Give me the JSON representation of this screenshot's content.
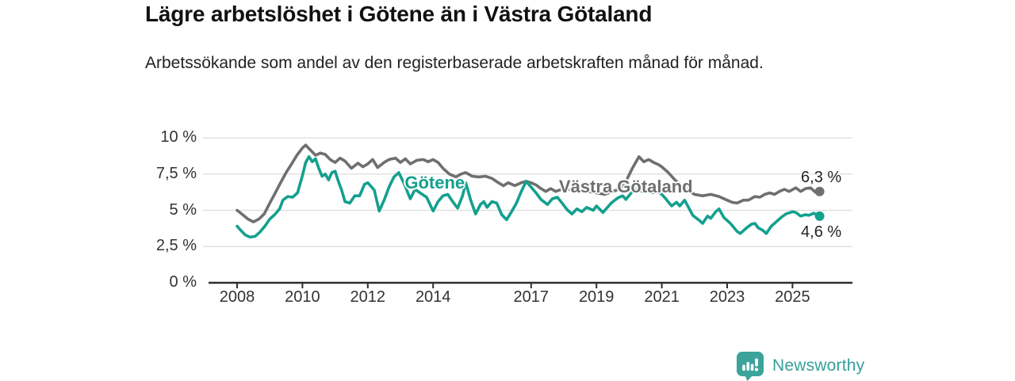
{
  "header": {
    "title": "Lägre arbetslöshet i Götene än i Västra Götaland",
    "subtitle": "Arbetssökande som andel av den registerbaserade arbetskraften månad för månad."
  },
  "chart_data": {
    "type": "line",
    "title": "Lägre arbetslöshet i Götene än i Västra Götaland",
    "xlabel": "",
    "ylabel": "",
    "grid": true,
    "legend_position": "inline-labels",
    "ylim": [
      0,
      10
    ],
    "x_range_years": [
      2007.1,
      2026.8
    ],
    "y_ticks": [
      {
        "label": "0 %",
        "value": 0
      },
      {
        "label": "2,5 %",
        "value": 2.5
      },
      {
        "label": "5 %",
        "value": 5
      },
      {
        "label": "7,5 %",
        "value": 7.5
      },
      {
        "label": "10 %",
        "value": 10
      }
    ],
    "x_ticks": [
      {
        "label": "2008",
        "year": 2008
      },
      {
        "label": "2010",
        "year": 2010
      },
      {
        "label": "2012",
        "year": 2012
      },
      {
        "label": "2014",
        "year": 2014
      },
      {
        "label": "2017",
        "year": 2017
      },
      {
        "label": "2019",
        "year": 2019
      },
      {
        "label": "2021",
        "year": 2021
      },
      {
        "label": "2023",
        "year": 2023
      },
      {
        "label": "2025",
        "year": 2025
      }
    ],
    "series": [
      {
        "name": "Västra Götaland",
        "color": "#6f6f6f",
        "label_color": "#6f6f6f",
        "inline_label": {
          "text": "Västra Götaland",
          "x_year": 2019.9,
          "y_value": 6.6
        },
        "end_label": "6,3 %",
        "end_value": 6.3,
        "value_label_position": "above",
        "points": [
          [
            2008.0,
            5.0
          ],
          [
            2008.17,
            4.7
          ],
          [
            2008.33,
            4.4
          ],
          [
            2008.5,
            4.2
          ],
          [
            2008.67,
            4.4
          ],
          [
            2008.83,
            4.75
          ],
          [
            2009.0,
            5.5
          ],
          [
            2009.17,
            6.2
          ],
          [
            2009.33,
            6.9
          ],
          [
            2009.5,
            7.6
          ],
          [
            2009.67,
            8.2
          ],
          [
            2009.83,
            8.8
          ],
          [
            2010.0,
            9.3
          ],
          [
            2010.1,
            9.5
          ],
          [
            2010.25,
            9.15
          ],
          [
            2010.4,
            8.8
          ],
          [
            2010.55,
            8.95
          ],
          [
            2010.7,
            8.85
          ],
          [
            2010.85,
            8.5
          ],
          [
            2011.0,
            8.3
          ],
          [
            2011.15,
            8.6
          ],
          [
            2011.3,
            8.4
          ],
          [
            2011.5,
            7.9
          ],
          [
            2011.7,
            8.25
          ],
          [
            2011.85,
            8.0
          ],
          [
            2012.0,
            8.2
          ],
          [
            2012.15,
            8.5
          ],
          [
            2012.3,
            7.95
          ],
          [
            2012.5,
            8.3
          ],
          [
            2012.65,
            8.5
          ],
          [
            2012.85,
            8.6
          ],
          [
            2013.0,
            8.3
          ],
          [
            2013.15,
            8.55
          ],
          [
            2013.3,
            8.2
          ],
          [
            2013.5,
            8.45
          ],
          [
            2013.7,
            8.5
          ],
          [
            2013.85,
            8.35
          ],
          [
            2014.0,
            8.5
          ],
          [
            2014.15,
            8.3
          ],
          [
            2014.3,
            7.9
          ],
          [
            2014.5,
            7.5
          ],
          [
            2014.7,
            7.3
          ],
          [
            2014.85,
            7.5
          ],
          [
            2015.0,
            7.6
          ],
          [
            2015.2,
            7.35
          ],
          [
            2015.4,
            7.3
          ],
          [
            2015.6,
            7.35
          ],
          [
            2015.8,
            7.2
          ],
          [
            2016.0,
            6.9
          ],
          [
            2016.15,
            6.7
          ],
          [
            2016.3,
            6.9
          ],
          [
            2016.5,
            6.7
          ],
          [
            2016.7,
            6.9
          ],
          [
            2016.85,
            7.0
          ],
          [
            2017.0,
            6.9
          ],
          [
            2017.15,
            6.75
          ],
          [
            2017.3,
            6.5
          ],
          [
            2017.45,
            6.3
          ],
          [
            2017.6,
            6.5
          ],
          [
            2017.75,
            6.3
          ],
          [
            2018.0,
            6.5
          ],
          [
            2018.25,
            6.4
          ],
          [
            2018.5,
            6.35
          ],
          [
            2018.75,
            6.3
          ],
          [
            2019.0,
            6.2
          ],
          [
            2019.25,
            6.1
          ],
          [
            2019.5,
            6.3
          ],
          [
            2019.75,
            6.5
          ],
          [
            2019.9,
            7.0
          ],
          [
            2020.1,
            7.9
          ],
          [
            2020.3,
            8.7
          ],
          [
            2020.45,
            8.35
          ],
          [
            2020.6,
            8.5
          ],
          [
            2020.75,
            8.3
          ],
          [
            2020.9,
            8.15
          ],
          [
            2021.0,
            8.0
          ],
          [
            2021.2,
            7.6
          ],
          [
            2021.4,
            7.1
          ],
          [
            2021.6,
            6.7
          ],
          [
            2021.85,
            6.3
          ],
          [
            2022.0,
            6.1
          ],
          [
            2022.25,
            6.0
          ],
          [
            2022.5,
            6.1
          ],
          [
            2022.75,
            5.95
          ],
          [
            2023.0,
            5.7
          ],
          [
            2023.15,
            5.55
          ],
          [
            2023.3,
            5.5
          ],
          [
            2023.5,
            5.7
          ],
          [
            2023.65,
            5.7
          ],
          [
            2023.85,
            5.95
          ],
          [
            2024.0,
            5.9
          ],
          [
            2024.15,
            6.1
          ],
          [
            2024.3,
            6.2
          ],
          [
            2024.45,
            6.1
          ],
          [
            2024.6,
            6.3
          ],
          [
            2024.75,
            6.45
          ],
          [
            2024.9,
            6.3
          ],
          [
            2025.1,
            6.55
          ],
          [
            2025.25,
            6.3
          ],
          [
            2025.4,
            6.5
          ],
          [
            2025.55,
            6.55
          ],
          [
            2025.7,
            6.25
          ],
          [
            2025.83,
            6.3
          ]
        ]
      },
      {
        "name": "Götene",
        "color": "#14a08e",
        "label_color": "#14a08e",
        "inline_label": {
          "text": "Götene",
          "x_year": 2014.05,
          "y_value": 6.9
        },
        "end_label": "4,6 %",
        "end_value": 4.6,
        "value_label_position": "below",
        "points": [
          [
            2008.0,
            3.9
          ],
          [
            2008.1,
            3.65
          ],
          [
            2008.25,
            3.3
          ],
          [
            2008.4,
            3.15
          ],
          [
            2008.55,
            3.2
          ],
          [
            2008.7,
            3.5
          ],
          [
            2008.85,
            3.9
          ],
          [
            2009.0,
            4.4
          ],
          [
            2009.15,
            4.7
          ],
          [
            2009.3,
            5.1
          ],
          [
            2009.4,
            5.7
          ],
          [
            2009.55,
            5.95
          ],
          [
            2009.7,
            5.9
          ],
          [
            2009.85,
            6.2
          ],
          [
            2010.0,
            7.4
          ],
          [
            2010.1,
            8.3
          ],
          [
            2010.2,
            8.7
          ],
          [
            2010.3,
            8.35
          ],
          [
            2010.4,
            8.55
          ],
          [
            2010.5,
            7.9
          ],
          [
            2010.6,
            7.35
          ],
          [
            2010.7,
            7.5
          ],
          [
            2010.8,
            7.1
          ],
          [
            2010.9,
            7.6
          ],
          [
            2011.0,
            7.7
          ],
          [
            2011.1,
            7.0
          ],
          [
            2011.2,
            6.4
          ],
          [
            2011.3,
            5.6
          ],
          [
            2011.45,
            5.5
          ],
          [
            2011.6,
            6.0
          ],
          [
            2011.75,
            6.0
          ],
          [
            2011.9,
            6.8
          ],
          [
            2012.0,
            6.9
          ],
          [
            2012.2,
            6.4
          ],
          [
            2012.35,
            4.95
          ],
          [
            2012.5,
            5.7
          ],
          [
            2012.65,
            6.6
          ],
          [
            2012.8,
            7.3
          ],
          [
            2012.95,
            7.6
          ],
          [
            2013.1,
            6.9
          ],
          [
            2013.3,
            5.8
          ],
          [
            2013.45,
            6.45
          ],
          [
            2013.6,
            6.2
          ],
          [
            2013.8,
            5.9
          ],
          [
            2014.0,
            4.95
          ],
          [
            2014.15,
            5.6
          ],
          [
            2014.3,
            6.0
          ],
          [
            2014.45,
            6.1
          ],
          [
            2014.6,
            5.6
          ],
          [
            2014.75,
            5.15
          ],
          [
            2014.9,
            6.0
          ],
          [
            2015.0,
            6.9
          ],
          [
            2015.15,
            5.7
          ],
          [
            2015.3,
            4.75
          ],
          [
            2015.45,
            5.4
          ],
          [
            2015.55,
            5.6
          ],
          [
            2015.65,
            5.2
          ],
          [
            2015.8,
            5.6
          ],
          [
            2015.95,
            5.5
          ],
          [
            2016.1,
            4.7
          ],
          [
            2016.25,
            4.35
          ],
          [
            2016.4,
            4.9
          ],
          [
            2016.55,
            5.5
          ],
          [
            2016.7,
            6.3
          ],
          [
            2016.85,
            7.0
          ],
          [
            2017.0,
            6.6
          ],
          [
            2017.15,
            6.2
          ],
          [
            2017.3,
            5.75
          ],
          [
            2017.5,
            5.4
          ],
          [
            2017.65,
            5.8
          ],
          [
            2017.8,
            5.9
          ],
          [
            2017.95,
            5.5
          ],
          [
            2018.1,
            5.05
          ],
          [
            2018.25,
            4.75
          ],
          [
            2018.4,
            5.1
          ],
          [
            2018.55,
            4.9
          ],
          [
            2018.7,
            5.2
          ],
          [
            2018.9,
            5.0
          ],
          [
            2019.0,
            5.3
          ],
          [
            2019.2,
            4.85
          ],
          [
            2019.45,
            5.5
          ],
          [
            2019.65,
            5.85
          ],
          [
            2019.8,
            6.0
          ],
          [
            2019.9,
            5.75
          ],
          [
            2020.1,
            6.3
          ],
          [
            2020.25,
            6.5
          ],
          [
            2020.4,
            6.3
          ],
          [
            2020.55,
            6.45
          ],
          [
            2020.7,
            6.2
          ],
          [
            2020.85,
            6.3
          ],
          [
            2021.0,
            6.1
          ],
          [
            2021.1,
            5.85
          ],
          [
            2021.3,
            5.3
          ],
          [
            2021.45,
            5.55
          ],
          [
            2021.55,
            5.3
          ],
          [
            2021.7,
            5.7
          ],
          [
            2021.95,
            4.65
          ],
          [
            2022.15,
            4.3
          ],
          [
            2022.25,
            4.1
          ],
          [
            2022.4,
            4.6
          ],
          [
            2022.5,
            4.45
          ],
          [
            2022.65,
            4.9
          ],
          [
            2022.75,
            5.1
          ],
          [
            2022.9,
            4.5
          ],
          [
            2023.1,
            4.1
          ],
          [
            2023.3,
            3.55
          ],
          [
            2023.4,
            3.4
          ],
          [
            2023.6,
            3.8
          ],
          [
            2023.75,
            4.05
          ],
          [
            2023.85,
            4.1
          ],
          [
            2023.95,
            3.8
          ],
          [
            2024.1,
            3.6
          ],
          [
            2024.2,
            3.4
          ],
          [
            2024.35,
            3.9
          ],
          [
            2024.5,
            4.2
          ],
          [
            2024.65,
            4.5
          ],
          [
            2024.8,
            4.75
          ],
          [
            2025.0,
            4.9
          ],
          [
            2025.1,
            4.85
          ],
          [
            2025.25,
            4.6
          ],
          [
            2025.4,
            4.7
          ],
          [
            2025.5,
            4.65
          ],
          [
            2025.65,
            4.8
          ],
          [
            2025.83,
            4.6
          ]
        ]
      }
    ],
    "colors": {
      "grid": "#dcdcdc",
      "axis": "#2e2e2e",
      "tick_text": "#333333"
    }
  },
  "footer": {
    "brand": "Newsworthy",
    "brand_color": "#35a09a",
    "logo_color": "#3ba39a"
  }
}
